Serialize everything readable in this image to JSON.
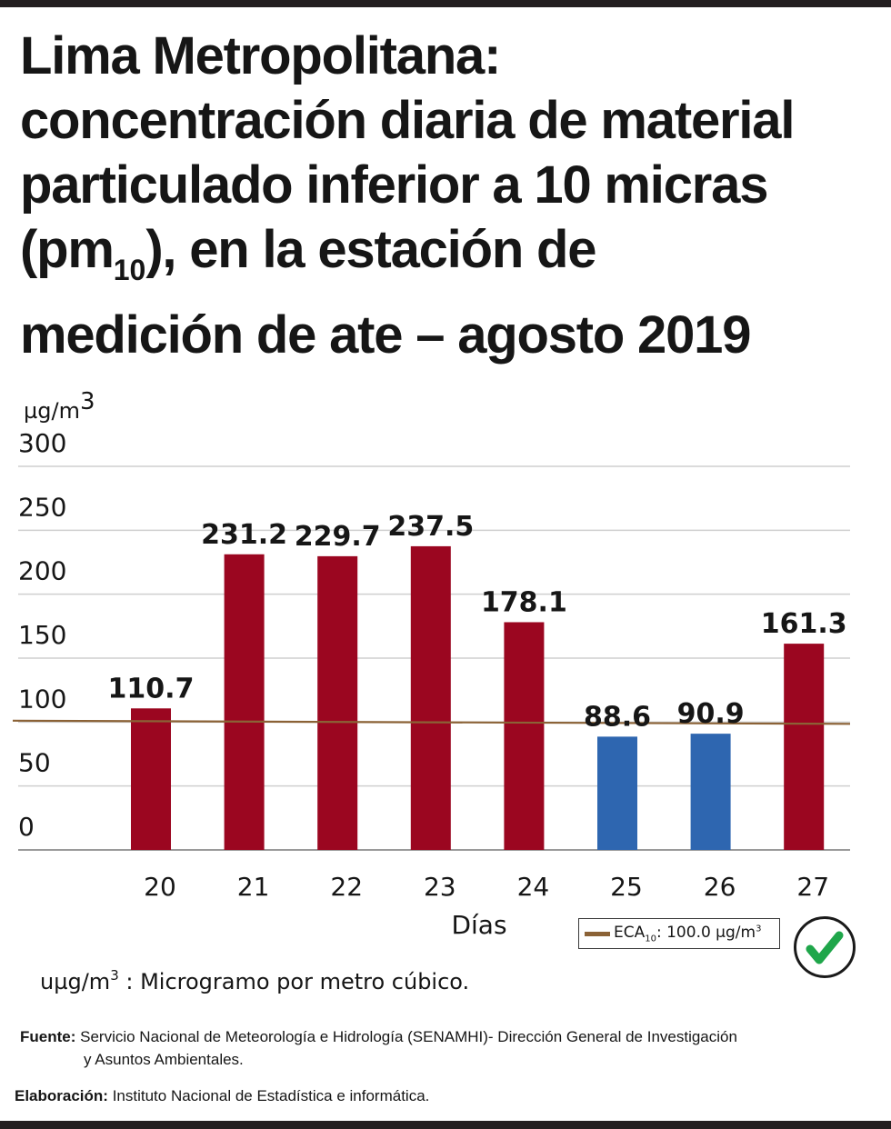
{
  "title": {
    "line1": "Lima Metropolitana:",
    "line2": "concentración diaria de material",
    "line3": "particulado inferior a 10 micras",
    "line4_pre": "(pm",
    "line4_sub": "10",
    "line4_post": "), en la estación de",
    "line5": "medición de ate – agosto 2019"
  },
  "chart_data": {
    "type": "bar",
    "title": "Lima Metropolitana: concentración diaria de material particulado inferior a 10 micras (pm10), en la estación de medición de ate – agosto 2019",
    "ylabel": "µg/m",
    "ylabel_sup": "3",
    "xlabel": "Días",
    "categories": [
      "20",
      "21",
      "22",
      "23",
      "24",
      "25",
      "26",
      "27"
    ],
    "values": [
      110.7,
      231.2,
      229.7,
      237.5,
      178.1,
      88.6,
      90.9,
      161.3
    ],
    "value_labels": [
      "110.7",
      "231.2",
      "229.7",
      "237.5",
      "178.1",
      "88.6",
      "90.9",
      "161.3"
    ],
    "ylim": [
      0,
      300
    ],
    "yticks": [
      0,
      50,
      100,
      150,
      200,
      250,
      300
    ],
    "grid": true,
    "reference_line": {
      "name": "ECA10",
      "value": 100.0
    },
    "colors": {
      "above_limit": "#9b0620",
      "below_limit": "#2e66b0",
      "reference_line": "#8b6236",
      "grid": "#cfcfcf"
    },
    "legend_placement": "bottom-right"
  },
  "legend": {
    "label_pre": "ECA",
    "label_sub": "10",
    "label_post": ": 100.0 µg/m",
    "label_sup": "3"
  },
  "status_icon": "checkmark-icon",
  "unit_note": {
    "pre": "uµg/m",
    "sup": "3",
    "post": " : Microgramo por metro cúbico."
  },
  "source": {
    "label": "Fuente:",
    "text1": " Servicio Nacional de Meteorología e Hidrología (SENAMHI)- Dirección General de  Investigación",
    "text2": "y Asuntos Ambientales."
  },
  "credit": {
    "label": "Elaboración:",
    "text": " Instituto Nacional de Estadística e informática."
  }
}
